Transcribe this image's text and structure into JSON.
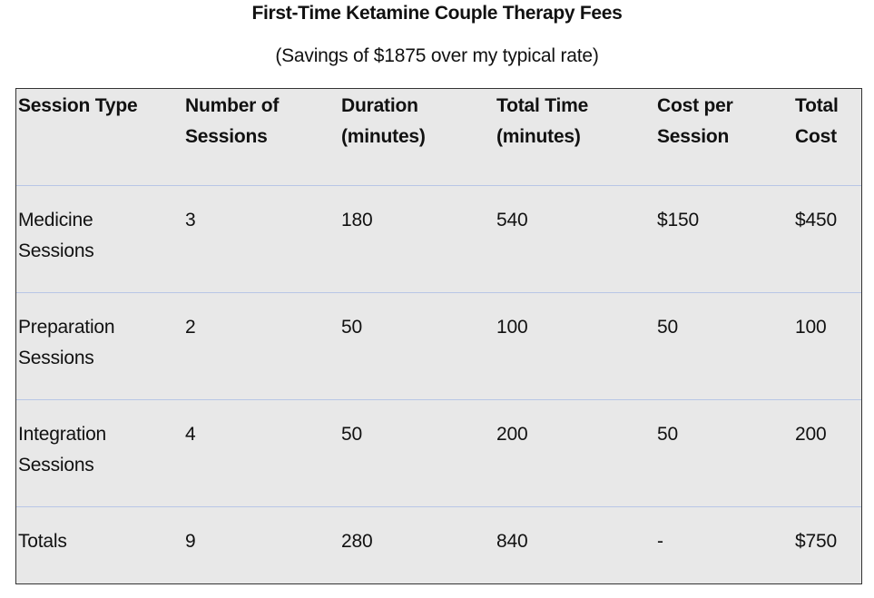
{
  "page": {
    "title": "First-Time Ketamine Couple Therapy Fees",
    "subtitle": "(Savings of $1875 over my typical rate)"
  },
  "table": {
    "headers": [
      [
        "Session Type"
      ],
      [
        "Number of",
        "Sessions"
      ],
      [
        "Duration",
        "(minutes)"
      ],
      [
        "Total Time",
        "(minutes)"
      ],
      [
        "Cost per",
        "Session"
      ],
      [
        "Total",
        "Cost"
      ]
    ],
    "rows": [
      {
        "session_type": [
          "Medicine",
          "Sessions"
        ],
        "number_of_sessions": "3",
        "duration": "180",
        "total_time": "540",
        "cost_per_session": "$150",
        "total_cost": "$450"
      },
      {
        "session_type": [
          "Preparation",
          "Sessions"
        ],
        "number_of_sessions": "2",
        "duration": "50",
        "total_time": "100",
        "cost_per_session": "50",
        "total_cost": "100"
      },
      {
        "session_type": [
          "Integration",
          "Sessions"
        ],
        "number_of_sessions": "4",
        "duration": "50",
        "total_time": "200",
        "cost_per_session": "50",
        "total_cost": "200"
      },
      {
        "session_type": [
          "Totals"
        ],
        "number_of_sessions": "9",
        "duration": "280",
        "total_time": "840",
        "cost_per_session": "-",
        "total_cost": "$750"
      }
    ]
  }
}
